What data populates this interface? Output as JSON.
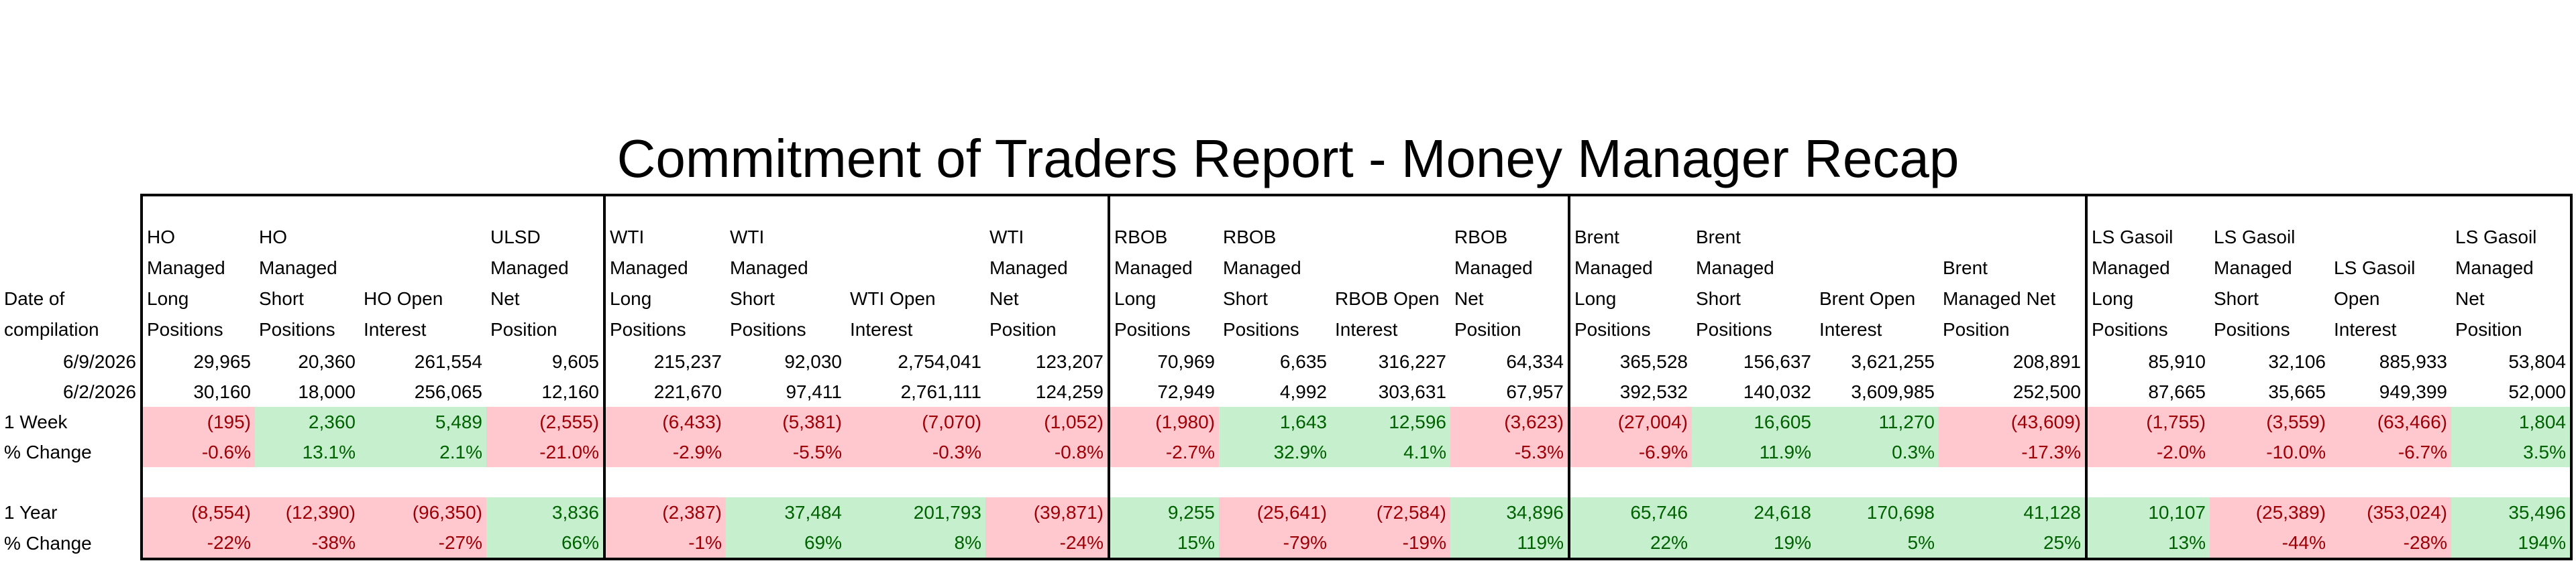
{
  "title": "Commitment of Traders Report - Money Manager Recap",
  "table": {
    "row_header": [
      "Date of",
      "compilation"
    ],
    "headers": [
      [
        "HO",
        "Managed",
        "Long",
        "Positions"
      ],
      [
        "HO",
        "Managed",
        "Short",
        "Positions"
      ],
      [
        "HO Open",
        "Interest"
      ],
      [
        "ULSD",
        "Managed",
        "Net",
        "Position"
      ],
      [
        "WTI",
        "Managed",
        "Long",
        "Positions"
      ],
      [
        "WTI",
        "Managed",
        "Short",
        "Positions"
      ],
      [
        "WTI Open",
        "Interest"
      ],
      [
        "WTI",
        "Managed",
        "Net",
        "Position"
      ],
      [
        "RBOB",
        "Managed",
        "Long",
        "Positions"
      ],
      [
        "RBOB",
        "Managed",
        "Short",
        "Positions"
      ],
      [
        "RBOB Open",
        "Interest"
      ],
      [
        "RBOB",
        "Managed",
        "Net",
        "Position"
      ],
      [
        "Brent",
        "Managed",
        "Long",
        "Positions"
      ],
      [
        "Brent",
        "Managed",
        "Short",
        "Positions"
      ],
      [
        "Brent Open",
        "Interest"
      ],
      [
        "Brent",
        "Managed Net",
        "Position"
      ],
      [
        "LS Gasoil",
        "Managed",
        "Long",
        "Positions"
      ],
      [
        "LS Gasoil",
        "Managed",
        "Short",
        "Positions"
      ],
      [
        "LS Gasoil",
        "Open",
        "Interest"
      ],
      [
        "LS Gasoil",
        "Managed",
        "Net",
        "Position"
      ]
    ],
    "rows": [
      {
        "label": "6/9/2026",
        "cells": [
          "29,965",
          "20,360",
          "261,554",
          "9,605",
          "215,237",
          "92,030",
          "2,754,041",
          "123,207",
          "70,969",
          "6,635",
          "316,227",
          "64,334",
          "365,528",
          "156,637",
          "3,621,255",
          "208,891",
          "85,910",
          "32,106",
          "885,933",
          "53,804"
        ]
      },
      {
        "label": "6/2/2026",
        "cells": [
          "30,160",
          "18,000",
          "256,065",
          "12,160",
          "221,670",
          "97,411",
          "2,761,111",
          "124,259",
          "72,949",
          "4,992",
          "303,631",
          "67,957",
          "392,532",
          "140,032",
          "3,609,985",
          "252,500",
          "87,665",
          "35,665",
          "949,399",
          "52,000"
        ]
      },
      {
        "label": "1 Week",
        "cells": [
          "(195)",
          "2,360",
          "5,489",
          "(2,555)",
          "(6,433)",
          "(5,381)",
          "(7,070)",
          "(1,052)",
          "(1,980)",
          "1,643",
          "12,596",
          "(3,623)",
          "(27,004)",
          "16,605",
          "11,270",
          "(43,609)",
          "(1,755)",
          "(3,559)",
          "(63,466)",
          "1,804"
        ]
      },
      {
        "label": "% Change",
        "cells": [
          "-0.6%",
          "13.1%",
          "2.1%",
          "-21.0%",
          "-2.9%",
          "-5.5%",
          "-0.3%",
          "-0.8%",
          "-2.7%",
          "32.9%",
          "4.1%",
          "-5.3%",
          "-6.9%",
          "11.9%",
          "0.3%",
          "-17.3%",
          "-2.0%",
          "-10.0%",
          "-6.7%",
          "3.5%"
        ]
      },
      {
        "label": "1 Year",
        "cells": [
          "(8,554)",
          "(12,390)",
          "(96,350)",
          "3,836",
          "(2,387)",
          "37,484",
          "201,793",
          "(39,871)",
          "9,255",
          "(25,641)",
          "(72,584)",
          "34,896",
          "65,746",
          "24,618",
          "170,698",
          "41,128",
          "10,107",
          "(25,389)",
          "(353,024)",
          "35,496"
        ]
      },
      {
        "label": "% Change",
        "cells": [
          "-22%",
          "-38%",
          "-27%",
          "66%",
          "-1%",
          "69%",
          "8%",
          "-24%",
          "15%",
          "-79%",
          "-19%",
          "119%",
          "22%",
          "19%",
          "5%",
          "25%",
          "13%",
          "-44%",
          "-28%",
          "194%"
        ]
      }
    ]
  }
}
